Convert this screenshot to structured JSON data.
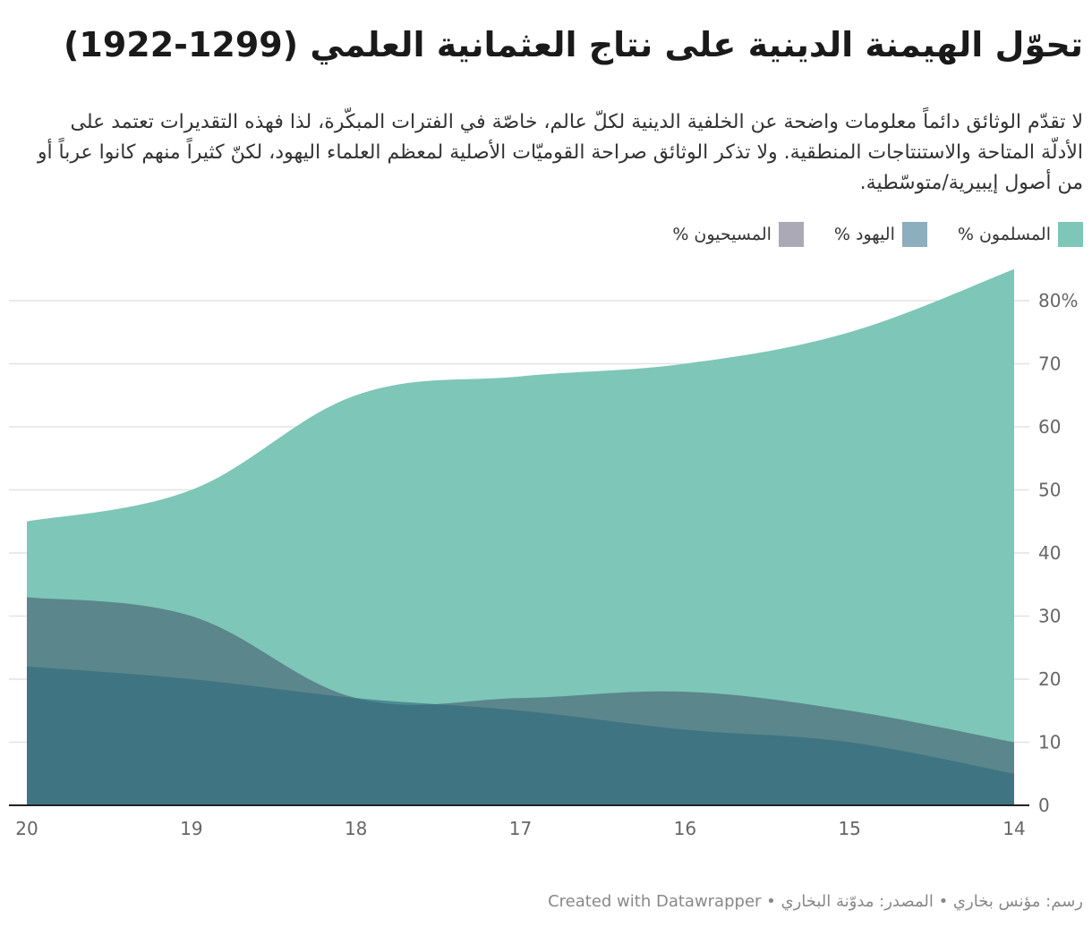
{
  "title": "تحوّل الهيمنة الدينية على نتاج العثمانية العلمي (1299-1922)",
  "subtitle": "لا تقدّم الوثائق دائماً معلومات واضحة عن الخلفية الدينية لكلّ عالم، خاصّة في الفترات المبكّرة، لذا فهذه التقديرات تعتمد على الأدلّة المتاحة والاستنتاجات المنطقية. ولا تذكر الوثائق صراحة القوميّات الأصلية لمعظم العلماء اليهود، لكنّ كثيراً منهم كانوا عرباً أو من أصول إيبيرية/متوسّطية.",
  "footer": "رسم: مؤنس بخاري • المصدر: مدوّنة البخاري • Created with Datawrapper",
  "colors": {
    "muslims": "#7ec6b8",
    "jews": "#8caebd",
    "christians": "#aca9b7",
    "overlap_jews_christians": "#6e8c94",
    "overlap_all": "#437586"
  },
  "chart_data": {
    "type": "area",
    "title": "تحوّل الهيمنة الدينية على نتاج العثمانية العلمي (1299-1922)",
    "x": [
      14,
      15,
      16,
      17,
      18,
      19,
      20
    ],
    "x_tick_labels": [
      "14",
      "15",
      "16",
      "17",
      "18",
      "19",
      "20"
    ],
    "x_direction": "right-to-left",
    "ylim": [
      0,
      85
    ],
    "y_ticks": [
      0,
      10,
      20,
      30,
      40,
      50,
      60,
      70,
      80
    ],
    "y_tick_labels": [
      "0",
      "10",
      "20",
      "30",
      "40",
      "50",
      "60",
      "70",
      "80%"
    ],
    "stacked": false,
    "series": [
      {
        "name": "المسلمون %",
        "key": "muslims",
        "values": [
          85,
          75,
          70,
          68,
          65,
          50,
          45
        ]
      },
      {
        "name": "اليهود %",
        "key": "jews",
        "values": [
          5,
          10,
          12,
          15,
          17,
          20,
          22
        ]
      },
      {
        "name": "المسيحيون %",
        "key": "christians",
        "values": [
          10,
          15,
          18,
          17,
          17,
          30,
          33
        ]
      }
    ]
  }
}
